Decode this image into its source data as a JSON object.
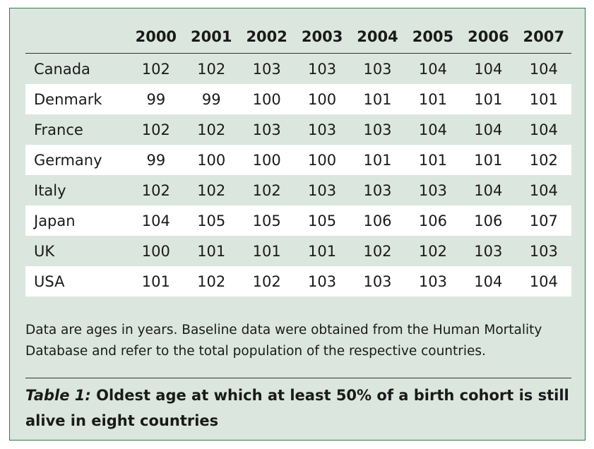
{
  "table": {
    "columns": [
      "2000",
      "2001",
      "2002",
      "2003",
      "2004",
      "2005",
      "2006",
      "2007"
    ],
    "rows": [
      {
        "country": "Canada",
        "values": [
          "102",
          "102",
          "103",
          "103",
          "103",
          "104",
          "104",
          "104"
        ]
      },
      {
        "country": "Denmark",
        "values": [
          "99",
          "99",
          "100",
          "100",
          "101",
          "101",
          "101",
          "101"
        ]
      },
      {
        "country": "France",
        "values": [
          "102",
          "102",
          "103",
          "103",
          "103",
          "104",
          "104",
          "104"
        ]
      },
      {
        "country": "Germany",
        "values": [
          "99",
          "100",
          "100",
          "100",
          "101",
          "101",
          "101",
          "102"
        ]
      },
      {
        "country": "Italy",
        "values": [
          "102",
          "102",
          "102",
          "103",
          "103",
          "103",
          "104",
          "104"
        ]
      },
      {
        "country": "Japan",
        "values": [
          "104",
          "105",
          "105",
          "105",
          "106",
          "106",
          "106",
          "107"
        ]
      },
      {
        "country": "UK",
        "values": [
          "100",
          "101",
          "101",
          "101",
          "102",
          "102",
          "103",
          "103"
        ]
      },
      {
        "country": "USA",
        "values": [
          "101",
          "102",
          "102",
          "103",
          "103",
          "103",
          "104",
          "104"
        ]
      }
    ]
  },
  "note": "Data are ages in years. Baseline data were obtained from the Human Mortality Database and refer to the total population of the respective countries.",
  "caption": {
    "label": "Table 1:",
    "text": "Oldest age at which at least 50% of a birth cohort is still alive in eight countries"
  },
  "colors": {
    "panel_background": "#dbe6df",
    "panel_border": "#2f7a4b",
    "alternate_row": "#ffffff"
  }
}
